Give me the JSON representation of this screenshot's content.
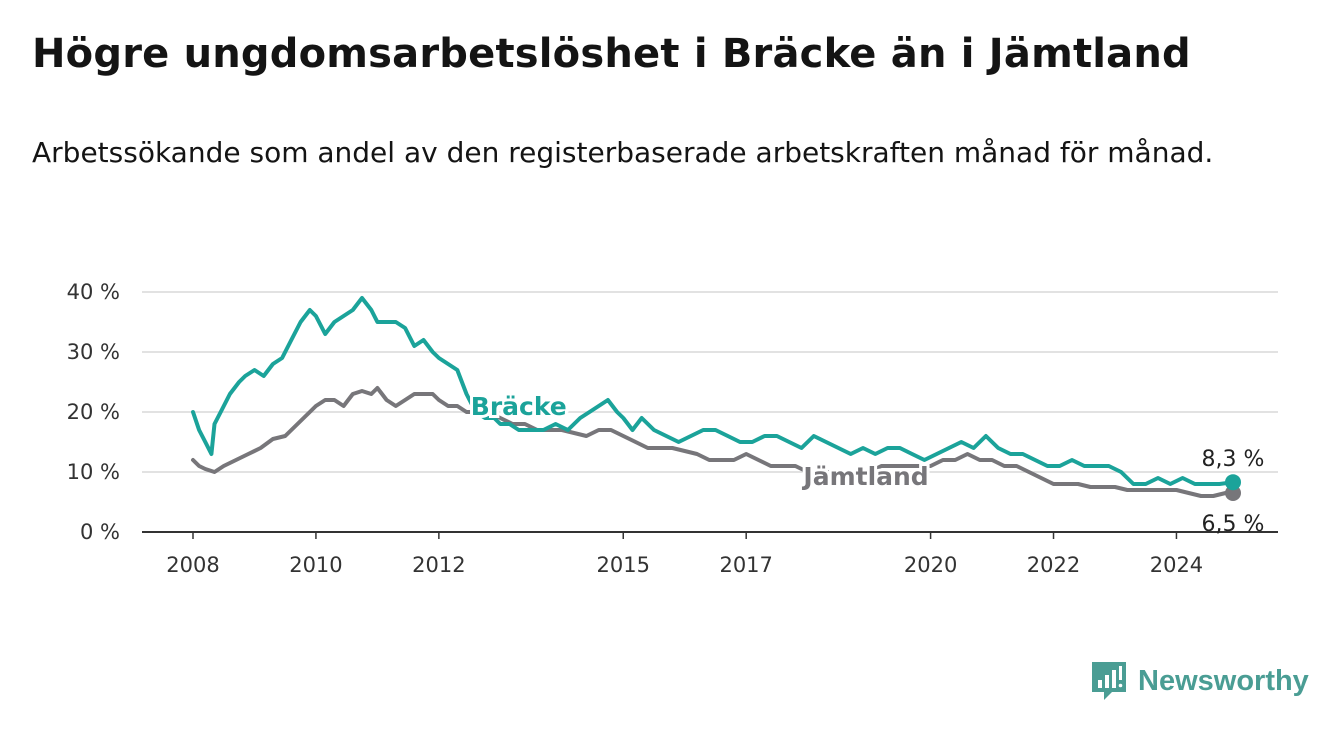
{
  "title": "Högre ungdomsarbetslöshet i Bräcke än i Jämtland",
  "subtitle": "Arbetssökande som andel av den registerbaserade arbetskraften månad för månad.",
  "brand": {
    "name": "Newsworthy",
    "icon": "bar-chart-logo-icon",
    "color": "#4a9d94"
  },
  "chart_data": {
    "type": "line",
    "title": "Högre ungdomsarbetslöshet i Bräcke än i Jämtland",
    "subtitle": "Arbetssökande som andel av den registerbaserade arbetskraften månad för månad.",
    "x_unit": "year",
    "xlim": [
      2008,
      2024.92
    ],
    "ylim": [
      0,
      40
    ],
    "y_ticks": [
      0,
      10,
      20,
      30,
      40
    ],
    "y_tick_labels": [
      "0 %",
      "10 %",
      "20 %",
      "30 %",
      "40 %"
    ],
    "x_ticks": [
      2008,
      2010,
      2012,
      2015,
      2017,
      2020,
      2022,
      2024
    ],
    "x_tick_labels": [
      "2008",
      "2010",
      "2012",
      "2015",
      "2017",
      "2020",
      "2022",
      "2024"
    ],
    "grid": true,
    "legend": "inline labels",
    "series": [
      {
        "name": "Bräcke",
        "color": "#1ba39a",
        "end_label": "8,3 %",
        "x": [
          2008.0,
          2008.1,
          2008.2,
          2008.3,
          2008.35,
          2008.45,
          2008.6,
          2008.75,
          2008.85,
          2009.0,
          2009.15,
          2009.3,
          2009.45,
          2009.6,
          2009.75,
          2009.9,
          2010.0,
          2010.15,
          2010.3,
          2010.45,
          2010.6,
          2010.75,
          2010.9,
          2011.0,
          2011.15,
          2011.3,
          2011.45,
          2011.6,
          2011.75,
          2011.9,
          2012.0,
          2012.15,
          2012.3,
          2012.45,
          2012.6,
          2012.75,
          2012.9,
          2013.0,
          2013.15,
          2013.3,
          2013.5,
          2013.7,
          2013.9,
          2014.1,
          2014.3,
          2014.45,
          2014.6,
          2014.75,
          2014.9,
          2015.0,
          2015.15,
          2015.3,
          2015.5,
          2015.7,
          2015.9,
          2016.1,
          2016.3,
          2016.5,
          2016.7,
          2016.9,
          2017.1,
          2017.3,
          2017.5,
          2017.7,
          2017.9,
          2018.1,
          2018.3,
          2018.5,
          2018.7,
          2018.9,
          2019.1,
          2019.3,
          2019.5,
          2019.7,
          2019.9,
          2020.1,
          2020.3,
          2020.5,
          2020.7,
          2020.9,
          2021.1,
          2021.3,
          2021.5,
          2021.7,
          2021.9,
          2022.1,
          2022.3,
          2022.5,
          2022.7,
          2022.9,
          2023.1,
          2023.3,
          2023.5,
          2023.7,
          2023.9,
          2024.1,
          2024.3,
          2024.5,
          2024.7,
          2024.92
        ],
        "values": [
          20,
          17,
          15,
          13,
          18,
          20,
          23,
          25,
          26,
          27,
          26,
          28,
          29,
          32,
          35,
          37,
          36,
          33,
          35,
          36,
          37,
          39,
          37,
          35,
          35,
          35,
          34,
          31,
          32,
          30,
          29,
          28,
          27,
          23,
          20,
          19,
          19,
          18,
          18,
          17,
          17,
          17,
          18,
          17,
          19,
          20,
          21,
          22,
          20,
          19,
          17,
          19,
          17,
          16,
          15,
          16,
          17,
          17,
          16,
          15,
          15,
          16,
          16,
          15,
          14,
          16,
          15,
          14,
          13,
          14,
          13,
          14,
          14,
          13,
          12,
          13,
          14,
          15,
          14,
          16,
          14,
          13,
          13,
          12,
          11,
          11,
          12,
          11,
          11,
          11,
          10,
          8,
          8,
          9,
          8,
          9,
          8,
          8,
          8,
          8.3
        ]
      },
      {
        "name": "Jämtland",
        "color": "#77767a",
        "end_label": "6,5 %",
        "x": [
          2008.0,
          2008.1,
          2008.2,
          2008.35,
          2008.5,
          2008.7,
          2008.9,
          2009.1,
          2009.3,
          2009.5,
          2009.7,
          2009.9,
          2010.0,
          2010.15,
          2010.3,
          2010.45,
          2010.6,
          2010.75,
          2010.9,
          2011.0,
          2011.15,
          2011.3,
          2011.45,
          2011.6,
          2011.75,
          2011.9,
          2012.0,
          2012.15,
          2012.3,
          2012.45,
          2012.6,
          2012.8,
          2013.0,
          2013.2,
          2013.4,
          2013.6,
          2013.8,
          2014.0,
          2014.2,
          2014.4,
          2014.6,
          2014.8,
          2015.0,
          2015.2,
          2015.4,
          2015.6,
          2015.8,
          2016.0,
          2016.2,
          2016.4,
          2016.6,
          2016.8,
          2017.0,
          2017.2,
          2017.4,
          2017.6,
          2017.8,
          2018.0,
          2018.2,
          2018.4,
          2018.6,
          2018.8,
          2019.0,
          2019.2,
          2019.4,
          2019.6,
          2019.8,
          2020.0,
          2020.2,
          2020.4,
          2020.6,
          2020.8,
          2021.0,
          2021.2,
          2021.4,
          2021.6,
          2021.8,
          2022.0,
          2022.2,
          2022.4,
          2022.6,
          2022.8,
          2023.0,
          2023.2,
          2023.4,
          2023.6,
          2023.8,
          2024.0,
          2024.2,
          2024.4,
          2024.6,
          2024.8,
          2024.92
        ],
        "values": [
          12,
          11,
          10.5,
          10,
          11,
          12,
          13,
          14,
          15.5,
          16,
          18,
          20,
          21,
          22,
          22,
          21,
          23,
          23.5,
          23,
          24,
          22,
          21,
          22,
          23,
          23,
          23,
          22,
          21,
          21,
          20,
          20,
          20,
          19,
          18,
          18,
          17,
          17,
          17,
          16.5,
          16,
          17,
          17,
          16,
          15,
          14,
          14,
          14,
          13.5,
          13,
          12,
          12,
          12,
          13,
          12,
          11,
          11,
          11,
          10,
          10,
          10,
          10,
          10,
          10,
          11,
          11,
          11,
          11,
          11,
          12,
          12,
          13,
          12,
          12,
          11,
          11,
          10,
          9,
          8,
          8,
          8,
          7.5,
          7.5,
          7.5,
          7,
          7,
          7,
          7,
          7,
          6.5,
          6,
          6,
          6.5,
          6.5
        ]
      }
    ]
  }
}
